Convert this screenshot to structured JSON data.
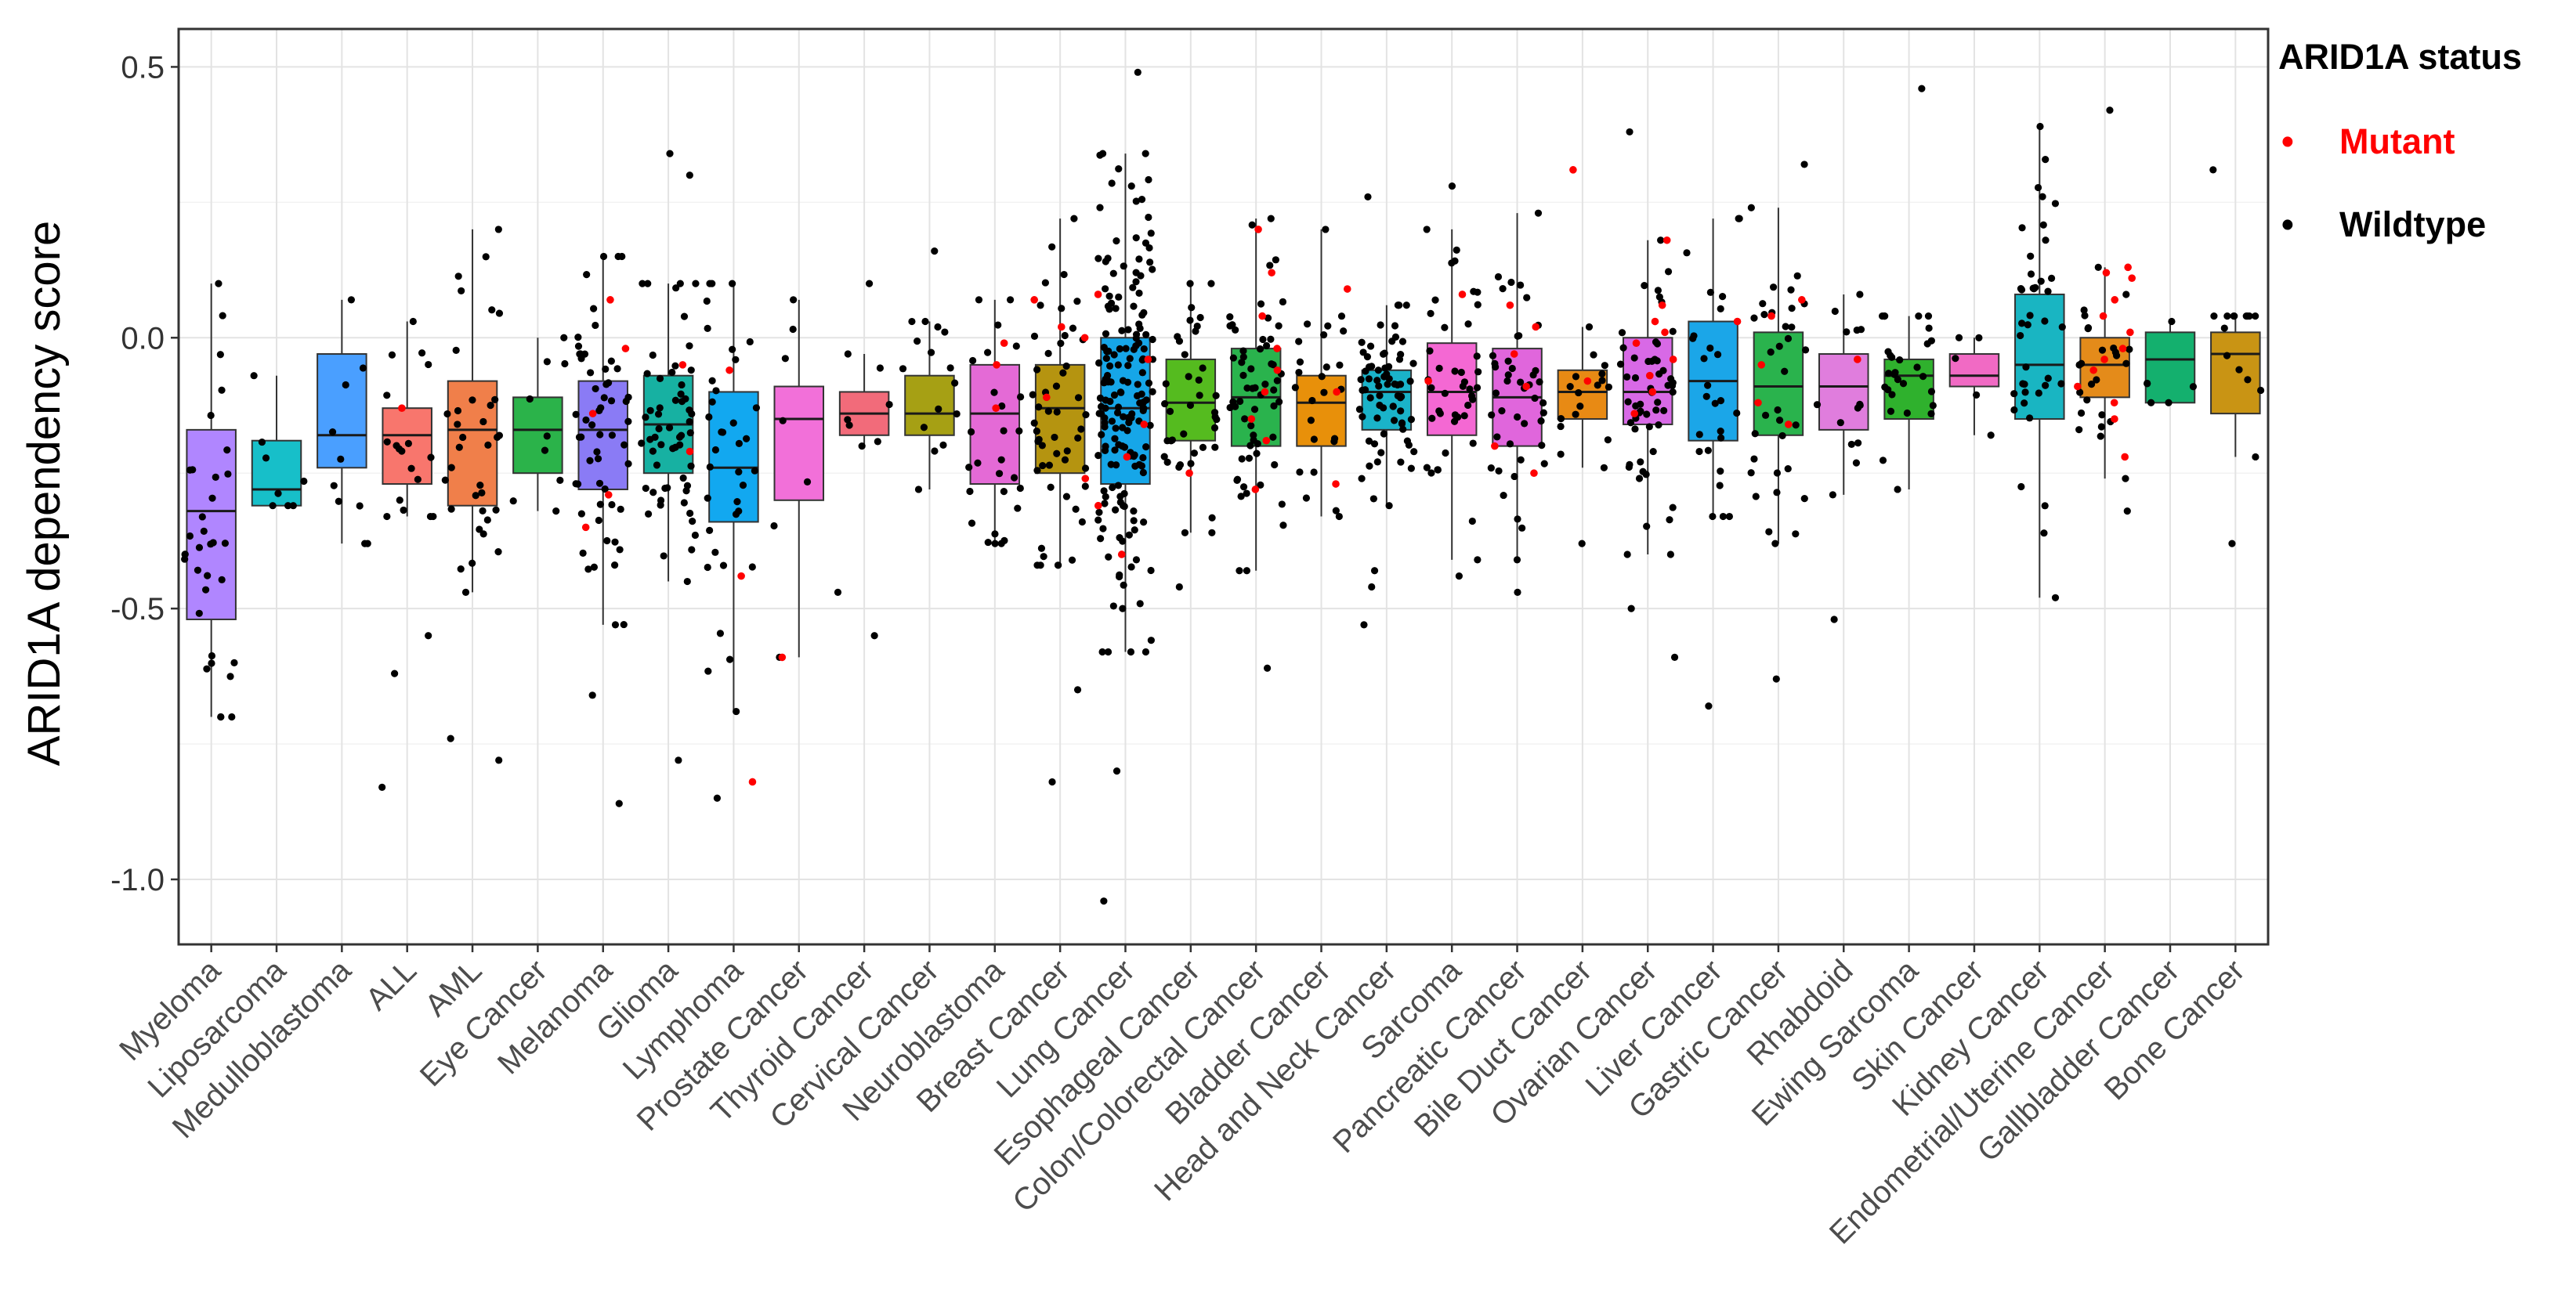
{
  "chart_data": {
    "type": "box",
    "title": "",
    "xlabel": "",
    "ylabel": "ARID1A dependency score",
    "ylim": [
      -1.12,
      0.57
    ],
    "yticks": [
      {
        "value": 0.5,
        "label": "0.5"
      },
      {
        "value": 0.0,
        "label": "0.0"
      },
      {
        "value": -0.5,
        "label": "-0.5"
      },
      {
        "value": -1.0,
        "label": "-1.0"
      }
    ],
    "grid": true,
    "legend": {
      "title": "ARID1A status",
      "position": "right",
      "entries": [
        {
          "label": "Mutant",
          "color": "#ff0000",
          "glyph": "•"
        },
        {
          "label": "Wildtype",
          "color": "#000000",
          "glyph": "•"
        }
      ]
    },
    "series": [
      {
        "name": "Myeloma",
        "color": "#b086ff",
        "q1": -0.52,
        "median": -0.32,
        "q3": -0.17,
        "whisker_low": -0.7,
        "whisker_high": 0.1,
        "n": 34,
        "mutant": [],
        "outliers": []
      },
      {
        "name": "Liposarcoma",
        "color": "#17bfc9",
        "q1": -0.31,
        "median": -0.28,
        "q3": -0.19,
        "whisker_low": -0.31,
        "whisker_high": -0.07,
        "n": 8,
        "mutant": [],
        "outliers": []
      },
      {
        "name": "Medulloblastoma",
        "color": "#4a9fff",
        "q1": -0.24,
        "median": -0.18,
        "q3": -0.03,
        "whisker_low": -0.38,
        "whisker_high": 0.07,
        "n": 10,
        "mutant": [],
        "outliers": []
      },
      {
        "name": "ALL",
        "color": "#f8766d",
        "q1": -0.27,
        "median": -0.18,
        "q3": -0.13,
        "whisker_low": -0.33,
        "whisker_high": 0.03,
        "n": 22,
        "mutant": [
          -0.13
        ],
        "outliers": [
          -0.55,
          -0.62,
          -0.83
        ]
      },
      {
        "name": "AML",
        "color": "#f07f4a",
        "q1": -0.31,
        "median": -0.17,
        "q3": -0.08,
        "whisker_low": -0.47,
        "whisker_high": 0.2,
        "n": 36,
        "mutant": [],
        "outliers": [
          -0.74,
          -0.78
        ]
      },
      {
        "name": "Eye Cancer",
        "color": "#2bb34a",
        "q1": -0.25,
        "median": -0.17,
        "q3": -0.11,
        "whisker_low": -0.32,
        "whisker_high": 0.0,
        "n": 9,
        "mutant": [],
        "outliers": []
      },
      {
        "name": "Melanoma",
        "color": "#8a7bf5",
        "q1": -0.28,
        "median": -0.17,
        "q3": -0.08,
        "whisker_low": -0.53,
        "whisker_high": 0.15,
        "n": 64,
        "mutant": [
          -0.02,
          -0.14,
          -0.29,
          -0.35,
          0.07
        ],
        "outliers": [
          -0.66,
          -0.86
        ]
      },
      {
        "name": "Glioma",
        "color": "#17b1a2",
        "q1": -0.25,
        "median": -0.16,
        "q3": -0.07,
        "whisker_low": -0.45,
        "whisker_high": 0.1,
        "n": 62,
        "mutant": [
          -0.05,
          -0.21
        ],
        "outliers": [
          0.34,
          0.3,
          -0.78
        ]
      },
      {
        "name": "Lymphoma",
        "color": "#12a8f0",
        "q1": -0.34,
        "median": -0.24,
        "q3": -0.1,
        "whisker_low": -0.69,
        "whisker_high": 0.1,
        "n": 40,
        "mutant": [
          -0.06,
          -0.44,
          -0.82
        ],
        "outliers": [
          -0.85
        ]
      },
      {
        "name": "Prostate Cancer",
        "color": "#f270d9",
        "q1": -0.3,
        "median": -0.15,
        "q3": -0.09,
        "whisker_low": -0.59,
        "whisker_high": 0.07,
        "n": 8,
        "mutant": [
          -0.59
        ],
        "outliers": []
      },
      {
        "name": "Thyroid Cancer",
        "color": "#f26b7a",
        "q1": -0.18,
        "median": -0.14,
        "q3": -0.1,
        "whisker_low": -0.2,
        "whisker_high": -0.03,
        "n": 10,
        "mutant": [],
        "outliers": [
          -0.55,
          -0.47,
          0.1
        ]
      },
      {
        "name": "Cervical Cancer",
        "color": "#a6a014",
        "q1": -0.18,
        "median": -0.14,
        "q3": -0.07,
        "whisker_low": -0.28,
        "whisker_high": 0.03,
        "n": 16,
        "mutant": [],
        "outliers": [
          0.16
        ]
      },
      {
        "name": "Neuroblastoma",
        "color": "#e46ad6",
        "q1": -0.27,
        "median": -0.14,
        "q3": -0.05,
        "whisker_low": -0.38,
        "whisker_high": 0.07,
        "n": 30,
        "mutant": [
          -0.01,
          -0.05,
          -0.13
        ],
        "outliers": []
      },
      {
        "name": "Breast Cancer",
        "color": "#b59410",
        "q1": -0.25,
        "median": -0.13,
        "q3": -0.05,
        "whisker_low": -0.42,
        "whisker_high": 0.22,
        "n": 58,
        "mutant": [
          0.07,
          0.02,
          -0.11,
          -0.26,
          0.0
        ],
        "outliers": [
          -0.65,
          -0.82
        ]
      },
      {
        "name": "Lung Cancer",
        "color": "#16a6e8",
        "q1": -0.27,
        "median": -0.13,
        "q3": 0.0,
        "whisker_low": -0.58,
        "whisker_high": 0.34,
        "n": 180,
        "mutant": [
          0.08,
          -0.04,
          -0.16,
          -0.22,
          -0.31,
          -0.4
        ],
        "outliers": [
          0.49,
          -0.8,
          -1.04
        ]
      },
      {
        "name": "Esophageal Cancer",
        "color": "#55bb1f",
        "q1": -0.19,
        "median": -0.12,
        "q3": -0.04,
        "whisker_low": -0.36,
        "whisker_high": 0.1,
        "n": 40,
        "mutant": [
          -0.25
        ],
        "outliers": [
          -0.46
        ]
      },
      {
        "name": "Colon/Colorectal Cancer",
        "color": "#2ab34d",
        "q1": -0.2,
        "median": -0.11,
        "q3": -0.02,
        "whisker_low": -0.43,
        "whisker_high": 0.22,
        "n": 70,
        "mutant": [
          0.04,
          -0.02,
          -0.06,
          -0.1,
          -0.15,
          -0.19,
          0.2,
          -0.28,
          0.12
        ],
        "outliers": [
          -0.61
        ]
      },
      {
        "name": "Bladder Cancer",
        "color": "#e8900a",
        "q1": -0.2,
        "median": -0.12,
        "q3": -0.07,
        "whisker_low": -0.33,
        "whisker_high": 0.2,
        "n": 28,
        "mutant": [
          0.09,
          -0.1,
          -0.27
        ],
        "outliers": []
      },
      {
        "name": "Head and Neck Cancer",
        "color": "#1ab3c9",
        "q1": -0.17,
        "median": -0.1,
        "q3": -0.06,
        "whisker_low": -0.31,
        "whisker_high": 0.06,
        "n": 74,
        "mutant": [],
        "outliers": [
          0.26,
          -0.46,
          -0.53,
          -0.43
        ]
      },
      {
        "name": "Sarcoma",
        "color": "#f468d3",
        "q1": -0.18,
        "median": -0.1,
        "q3": -0.01,
        "whisker_low": -0.41,
        "whisker_high": 0.2,
        "n": 46,
        "mutant": [
          0.08,
          -0.08
        ],
        "outliers": [
          0.28,
          -0.44
        ]
      },
      {
        "name": "Pancreatic Cancer",
        "color": "#e066dc",
        "q1": -0.2,
        "median": -0.11,
        "q3": -0.02,
        "whisker_low": -0.41,
        "whisker_high": 0.23,
        "n": 50,
        "mutant": [
          0.06,
          0.02,
          -0.03,
          -0.09,
          -0.2,
          -0.25
        ],
        "outliers": [
          -0.47
        ]
      },
      {
        "name": "Bile Duct Cancer",
        "color": "#e88a14",
        "q1": -0.15,
        "median": -0.1,
        "q3": -0.06,
        "whisker_low": -0.24,
        "whisker_high": 0.02,
        "n": 20,
        "mutant": [
          0.31,
          -0.08
        ],
        "outliers": [
          -0.38
        ]
      },
      {
        "name": "Ovarian Cancer",
        "color": "#d869e6",
        "q1": -0.16,
        "median": -0.1,
        "q3": 0.0,
        "whisker_low": -0.4,
        "whisker_high": 0.18,
        "n": 66,
        "mutant": [
          0.18,
          0.06,
          0.03,
          0.01,
          -0.01,
          -0.04,
          -0.07,
          -0.1,
          -0.14
        ],
        "outliers": [
          0.38,
          -0.5,
          -0.59
        ]
      },
      {
        "name": "Liver Cancer",
        "color": "#1ba6e8",
        "q1": -0.19,
        "median": -0.08,
        "q3": 0.03,
        "whisker_low": -0.33,
        "whisker_high": 0.22,
        "n": 28,
        "mutant": [
          0.03
        ],
        "outliers": [
          -0.68
        ]
      },
      {
        "name": "Gastric Cancer",
        "color": "#2ab34d",
        "q1": -0.18,
        "median": -0.09,
        "q3": 0.01,
        "whisker_low": -0.38,
        "whisker_high": 0.24,
        "n": 40,
        "mutant": [
          0.07,
          0.04,
          -0.05,
          -0.12,
          -0.16
        ],
        "outliers": [
          0.32,
          -0.63
        ]
      },
      {
        "name": "Rhabdoid",
        "color": "#e07ddd",
        "q1": -0.17,
        "median": -0.09,
        "q3": -0.03,
        "whisker_low": -0.29,
        "whisker_high": 0.08,
        "n": 16,
        "mutant": [
          -0.04
        ],
        "outliers": [
          -0.52
        ]
      },
      {
        "name": "Ewing Sarcoma",
        "color": "#2fb12d",
        "q1": -0.15,
        "median": -0.07,
        "q3": -0.04,
        "whisker_low": -0.28,
        "whisker_high": 0.04,
        "n": 30,
        "mutant": [],
        "outliers": [
          0.46
        ]
      },
      {
        "name": "Skin Cancer",
        "color": "#f16ac4",
        "q1": -0.09,
        "median": -0.07,
        "q3": -0.03,
        "whisker_low": -0.18,
        "whisker_high": 0.0,
        "n": 5,
        "mutant": [],
        "outliers": []
      },
      {
        "name": "Kidney Cancer",
        "color": "#19b5c2",
        "q1": -0.15,
        "median": -0.05,
        "q3": 0.08,
        "whisker_low": -0.48,
        "whisker_high": 0.39,
        "n": 40,
        "mutant": [],
        "outliers": []
      },
      {
        "name": "Endometrial/Uterine Cancer",
        "color": "#e48b1a",
        "q1": -0.11,
        "median": -0.05,
        "q3": 0.0,
        "whisker_low": -0.26,
        "whisker_high": 0.13,
        "n": 40,
        "mutant": [
          0.13,
          0.12,
          0.11,
          0.07,
          0.04,
          0.01,
          -0.02,
          -0.04,
          -0.06,
          -0.09,
          -0.12,
          -0.15,
          -0.22
        ],
        "outliers": [
          0.42,
          -0.32
        ]
      },
      {
        "name": "Gallbladder Cancer",
        "color": "#14b06e",
        "q1": -0.12,
        "median": -0.04,
        "q3": 0.01,
        "whisker_low": -0.12,
        "whisker_high": 0.03,
        "n": 6,
        "mutant": [],
        "outliers": []
      },
      {
        "name": "Bone Cancer",
        "color": "#c99414",
        "q1": -0.14,
        "median": -0.03,
        "q3": 0.01,
        "whisker_low": -0.22,
        "whisker_high": 0.04,
        "n": 16,
        "mutant": [],
        "outliers": [
          0.31,
          -0.38
        ]
      }
    ]
  }
}
